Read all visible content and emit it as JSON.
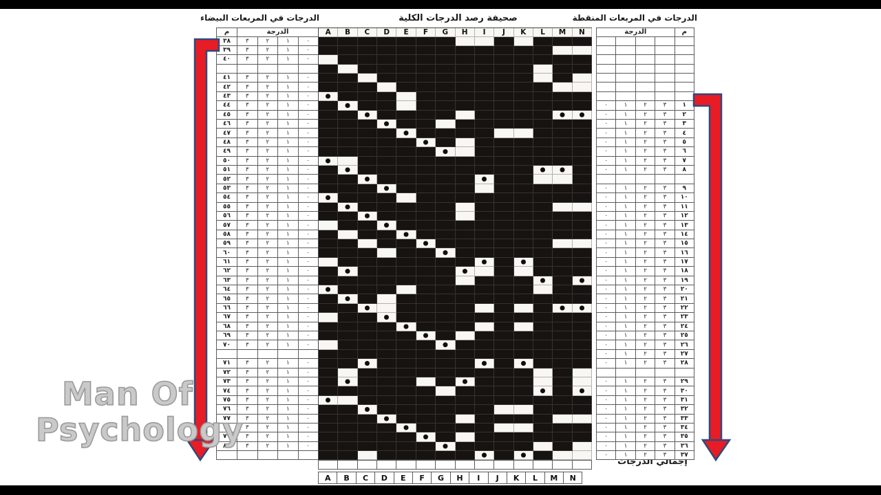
{
  "titles": {
    "center": "صحيفة رصد الدرجات الكلية",
    "left": "الدرجات في المربعات البيضاء",
    "right": "الدرجات في المربعات المنقطة",
    "totals": "إجمالي الدرجات"
  },
  "watermark": {
    "line1": "Man Of",
    "line2": "Psychology"
  },
  "left_table": {
    "num_header": "م",
    "score_header": "الدرجة",
    "score_digits": [
      "٣",
      "٢",
      "١",
      "٠"
    ],
    "rows": [
      "٣٨",
      "٣٩",
      "٤٠",
      "",
      "٤١",
      "٤٢",
      "٤٣",
      "٤٤",
      "٤٥",
      "٤٦",
      "٤٧",
      "٤٨",
      "٤٩",
      "٥٠",
      "٥١",
      "٥٢",
      "٥٣",
      "٥٤",
      "٥٥",
      "٥٦",
      "٥٧",
      "٥٨",
      "٥٩",
      "٦٠",
      "٦١",
      "٦٢",
      "٦٣",
      "٦٤",
      "٦٥",
      "٦٦",
      "٦٧",
      "٦٨",
      "٦٩",
      "٧٠",
      "",
      "٧١",
      "٧٢",
      "٧٣",
      "٧٤",
      "٧٥",
      "٧٦",
      "٧٧",
      "٧٨",
      "٧٩",
      "٨٠",
      ""
    ]
  },
  "right_table": {
    "num_header": "م",
    "score_header": "الدرجة",
    "score_digits": [
      "٠",
      "١",
      "٢",
      "٣"
    ],
    "rows": [
      "",
      "",
      "",
      "",
      "",
      "",
      "",
      "١",
      "٢",
      "٣",
      "٤",
      "٥",
      "٦",
      "٧",
      "٨",
      "",
      "٩",
      "١٠",
      "١١",
      "١٢",
      "١٣",
      "١٤",
      "١٥",
      "١٦",
      "١٧",
      "١٨",
      "١٩",
      "٢٠",
      "٢١",
      "٢٢",
      "٢٣",
      "٢٤",
      "٢٥",
      "٢٦",
      "٢٧",
      "٢٨",
      "",
      "٢٩",
      "٣٠",
      "٣١",
      "٣٢",
      "٣٣",
      "٣٤",
      "٣٥",
      "٣٦",
      "٣٧"
    ]
  },
  "grid": {
    "columns": [
      "A",
      "B",
      "C",
      "D",
      "E",
      "F",
      "G",
      "H",
      "I",
      "J",
      "K",
      "L",
      "M",
      "N"
    ],
    "legend": {
      "B": "black",
      "W": "white",
      "D": "white-with-dot"
    },
    "pattern": [
      "BBBBBBBWWBWBBB",
      "BBBBBBBBBBBBWW",
      "WBBBBBBBBBBBBB",
      "BWBBBBBBBBBWBB",
      "BBWBBBBBBBBWBW",
      "BBBWBBBBBBBBWW",
      "DBBBWBBBBBBBBB",
      "BDBBWBBBBBBBBB",
      "BBDBBBBWBBBBDD",
      "BBBDBBWBBBBBBB",
      "BBBBDBBBBWWBBB",
      "BBBBBDBWBBBBBB",
      "BBBBBBDWBBBBBB",
      "DWBBBBBBBBBBBB",
      "BDBBBBBBBBBDDB",
      "BBDBBBBBDBBWWB",
      "BBBDBBBBWBBBBB",
      "DBBBWBBBBBBBBB",
      "BDBBBBBWBBBBWW",
      "BBDBBBBWBBBBBB",
      "WBBDBBBBBBBBBB",
      "BWBBDBBBBBBBBB",
      "BBWBBDBBBBBBWW",
      "BBBWBBDBBBBBBB",
      "WBBBBBBBDBDBBB",
      "BDBBBBBDWBWBBB",
      "BBBBBBBWBBBDBD",
      "DBBBWBBBBBBWBB",
      "BDBWBBBBBBBBBB",
      "BBDWBBBBWBWBDD",
      "WBBDBBBBBBBBBB",
      "BBBBDBBBWBWBBB",
      "BBBBBDBWBBBBBB",
      "WBBBBBDBBBBBBB",
      "BBBBBBBBBBBBBB",
      "BBDBBBBBDBDBBB",
      "BWBBBBBBBBBWBW",
      "BDBBBWBDBBBWBW",
      "BBBBBBWBBBBDBD",
      "DWBBBBBBBBBBBB",
      "BBDBBBBBBWWBBB",
      "BBBDBBBWBBBBWW",
      "BBBBDBBBBWWBBB",
      "BBBBBDBWBBBBBB",
      "BBBBBBDBBBBWBW",
      "BBWBBBBBDBDBWW"
    ]
  },
  "colors": {
    "grid_black": "#171310",
    "arrow_red": "#e81c24",
    "arrow_navy": "#2d4a7d",
    "letterbox": "#000000"
  }
}
